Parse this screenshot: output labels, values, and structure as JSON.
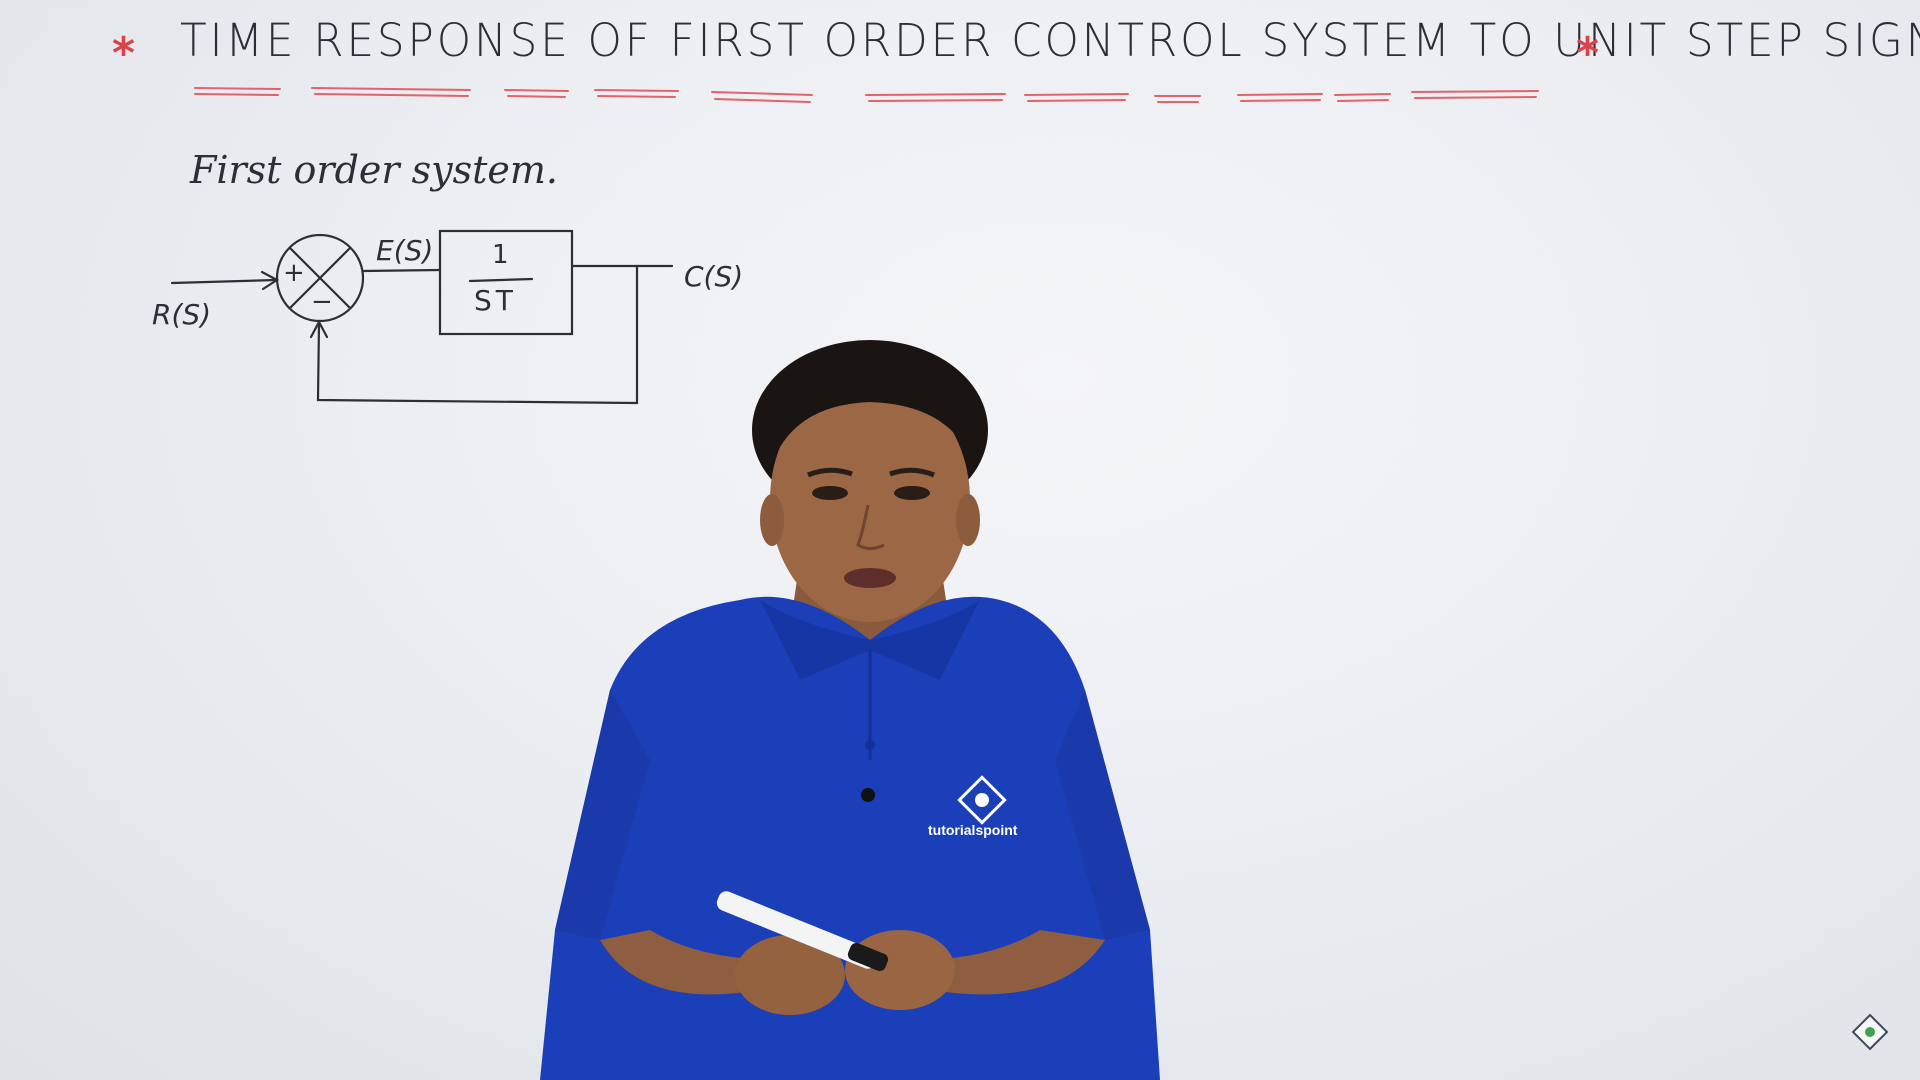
{
  "board": {
    "title": "TIME RESPONSE OF FIRST ORDER CONTROL SYSTEM TO UNIT STEP SIGNAL",
    "subtitle": "First order system.",
    "star": "*",
    "accent_color": "#d9434a",
    "ink_color": "#2b2f36"
  },
  "diagram": {
    "input_label": "R(S)",
    "error_label": "E(S)",
    "output_label": "C(S)",
    "plus_sign": "+",
    "minus_sign": "−",
    "block_numerator": "1",
    "block_denominator": "ST"
  },
  "presenter": {
    "shirt_color": "#1b3fb8",
    "shirt_logo_text": "tutorialspoint"
  }
}
